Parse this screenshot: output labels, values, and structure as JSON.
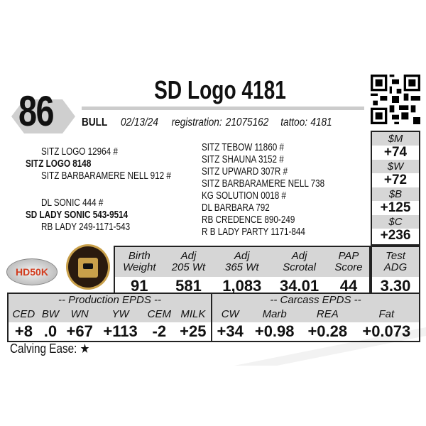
{
  "lot": "86",
  "title": "SD Logo 4181",
  "info": {
    "sex": "BULL",
    "birth_date": "02/13/24",
    "registration_label": "registration:",
    "registration": "21075162",
    "tattoo_label": "tattoo:",
    "tattoo": "4181"
  },
  "indexes": [
    {
      "label": "$M",
      "value": "+74"
    },
    {
      "label": "$W",
      "value": "+72"
    },
    {
      "label": "$B",
      "value": "+125"
    },
    {
      "label": "$C",
      "value": "+236"
    }
  ],
  "pedigree": {
    "sire_sire": "SITZ LOGO 12964 #",
    "sire": "SITZ LOGO 8148",
    "sire_dam": "SITZ BARBARAMERE NELL 912 #",
    "dam_sire": "DL SONIC 444 #",
    "dam": "SD LADY SONIC 543-9514",
    "dam_dam": "RB LADY 249-1171-543",
    "great": [
      "SITZ TEBOW 11860 #",
      "SITZ SHAUNA 3152 #",
      "SITZ UPWARD 307R #",
      "SITZ BARBARAMERE NELL 738",
      "KG SOLUTION 0018 #",
      "DL BARBARA 792",
      "RB CREDENCE 890-249",
      "R B LADY PARTY 1171-844"
    ]
  },
  "logos": {
    "hd50k": "HD50K"
  },
  "performance": {
    "headers": [
      [
        "Birth",
        "Weight"
      ],
      [
        "Adj",
        "205 Wt"
      ],
      [
        "Adj",
        "365 Wt"
      ],
      [
        "Adj",
        "Scrotal"
      ],
      [
        "PAP",
        "Score"
      ]
    ],
    "values": [
      "91",
      "581",
      "1,083",
      "34.01",
      "44"
    ],
    "test_header": [
      "Test",
      "ADG"
    ],
    "test_value": "3.30"
  },
  "epds": {
    "production_title": "-- Production EPDS --",
    "carcass_title": "-- Carcass EPDS --",
    "headers": [
      "CED",
      "BW",
      "WN",
      "YW",
      "CEM",
      "MILK",
      "CW",
      "Marb",
      "REA",
      "Fat"
    ],
    "values": [
      "+8",
      ".0",
      "+67",
      "+113",
      "-2",
      "+25",
      "+34",
      "+0.98",
      "+0.28",
      "+0.073"
    ]
  },
  "calving_ease": {
    "label": "Calving Ease:",
    "stars": "★"
  }
}
